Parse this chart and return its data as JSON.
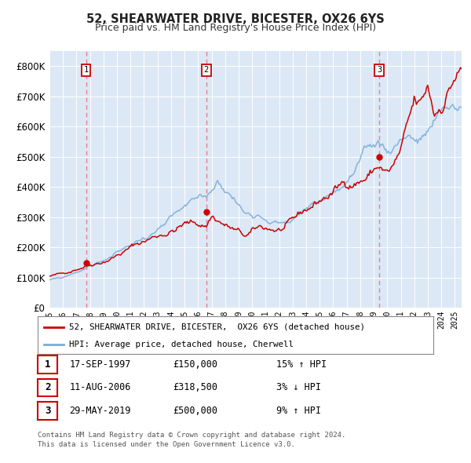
{
  "title": "52, SHEARWATER DRIVE, BICESTER, OX26 6YS",
  "subtitle": "Price paid vs. HM Land Registry's House Price Index (HPI)",
  "ylim": [
    0,
    850000
  ],
  "yticks": [
    0,
    100000,
    200000,
    300000,
    400000,
    500000,
    600000,
    700000,
    800000
  ],
  "xlim_start": 1995.0,
  "xlim_end": 2025.5,
  "sale_dates": [
    1997.71,
    2006.61,
    2019.41
  ],
  "sale_prices": [
    150000,
    318500,
    500000
  ],
  "sale_labels": [
    "1",
    "2",
    "3"
  ],
  "sale_date_strs": [
    "17-SEP-1997",
    "11-AUG-2006",
    "29-MAY-2019"
  ],
  "sale_price_strs": [
    "£150,000",
    "£318,500",
    "£500,000"
  ],
  "sale_hpi_strs": [
    "15% ↑ HPI",
    "3% ↓ HPI",
    "9% ↑ HPI"
  ],
  "legend_entry1": "52, SHEARWATER DRIVE, BICESTER,  OX26 6YS (detached house)",
  "legend_entry2": "HPI: Average price, detached house, Cherwell",
  "footer1": "Contains HM Land Registry data © Crown copyright and database right 2024.",
  "footer2": "This data is licensed under the Open Government Licence v3.0.",
  "line_color_red": "#cc0000",
  "line_color_blue": "#7aaddb",
  "dot_color": "#cc0000",
  "vline_color": "#e87a8a",
  "background_color": "#ffffff",
  "plot_bg_color": "#dce8f5"
}
